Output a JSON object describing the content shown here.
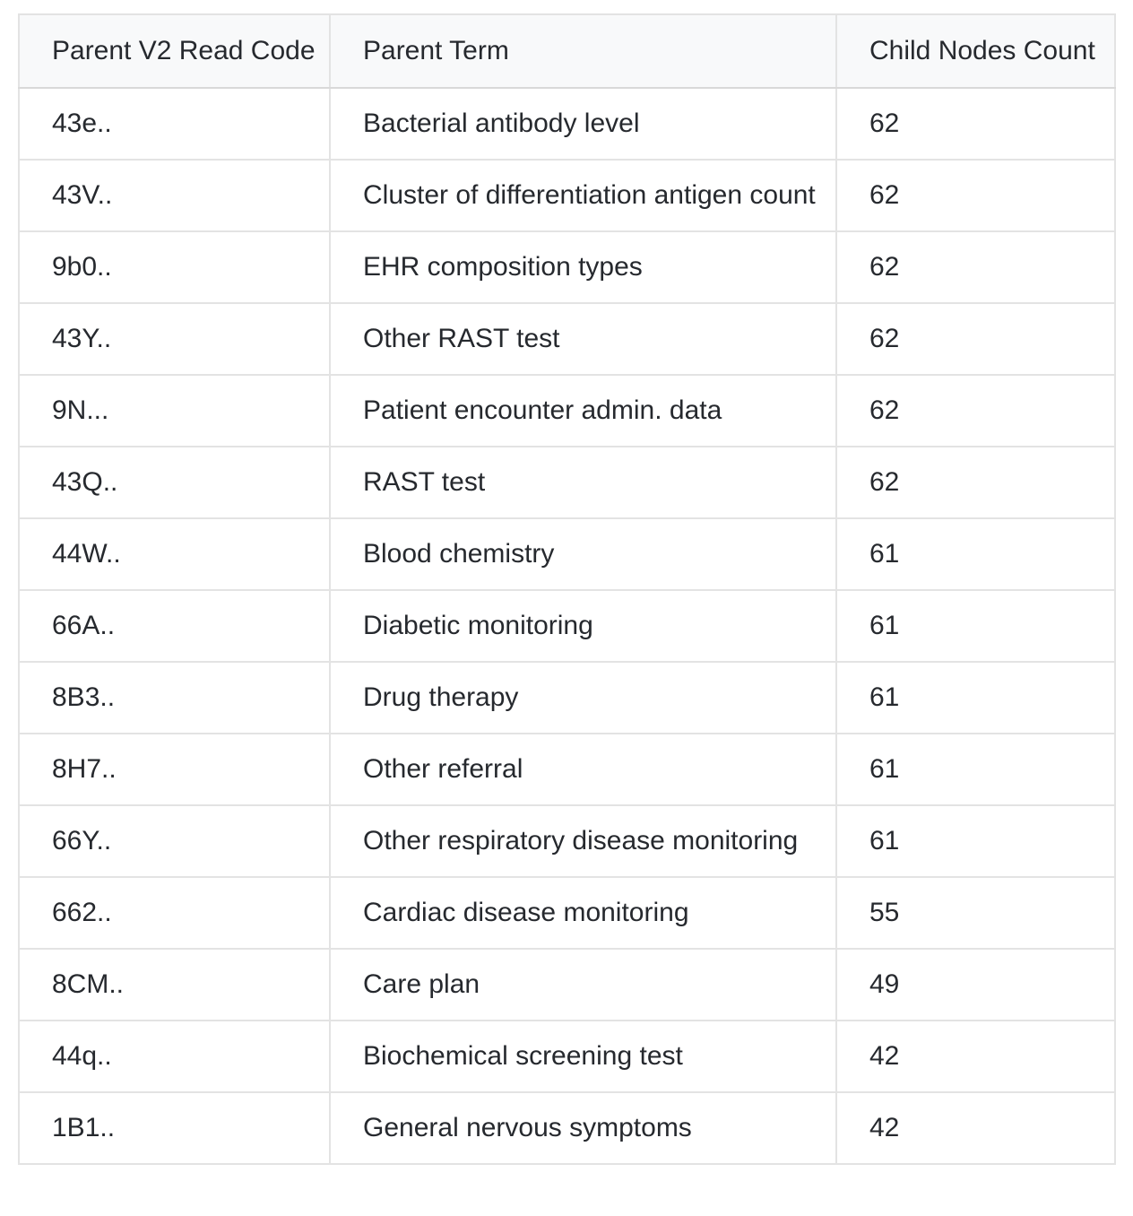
{
  "table": {
    "columns": [
      {
        "label": "Parent V2 Read Code"
      },
      {
        "label": "Parent Term"
      },
      {
        "label": "Child Nodes Count"
      }
    ],
    "rows": [
      {
        "code": "43e..",
        "term": "Bacterial antibody level",
        "count": "62"
      },
      {
        "code": "43V..",
        "term": "Cluster of differentiation antigen count",
        "count": "62"
      },
      {
        "code": "9b0..",
        "term": "EHR composition types",
        "count": "62"
      },
      {
        "code": "43Y..",
        "term": "Other RAST test",
        "count": "62"
      },
      {
        "code": "9N...",
        "term": "Patient encounter admin. data",
        "count": "62"
      },
      {
        "code": "43Q..",
        "term": "RAST test",
        "count": "62"
      },
      {
        "code": "44W..",
        "term": "Blood chemistry",
        "count": "61"
      },
      {
        "code": "66A..",
        "term": "Diabetic monitoring",
        "count": "61"
      },
      {
        "code": "8B3..",
        "term": "Drug therapy",
        "count": "61"
      },
      {
        "code": "8H7..",
        "term": "Other referral",
        "count": "61"
      },
      {
        "code": "66Y..",
        "term": "Other respiratory disease monitoring",
        "count": "61"
      },
      {
        "code": "662..",
        "term": "Cardiac disease monitoring",
        "count": "55"
      },
      {
        "code": "8CM..",
        "term": "Care plan",
        "count": "49"
      },
      {
        "code": "44q..",
        "term": "Biochemical screening test",
        "count": "42"
      },
      {
        "code": "1B1..",
        "term": "General nervous symptoms",
        "count": "42"
      }
    ]
  },
  "chart_data": {
    "type": "table",
    "columns": [
      "Parent V2 Read Code",
      "Parent Term",
      "Child Nodes Count"
    ],
    "rows": [
      [
        "43e..",
        "Bacterial antibody level",
        62
      ],
      [
        "43V..",
        "Cluster of differentiation antigen count",
        62
      ],
      [
        "9b0..",
        "EHR composition types",
        62
      ],
      [
        "43Y..",
        "Other RAST test",
        62
      ],
      [
        "9N...",
        "Patient encounter admin. data",
        62
      ],
      [
        "43Q..",
        "RAST test",
        62
      ],
      [
        "44W..",
        "Blood chemistry",
        61
      ],
      [
        "66A..",
        "Diabetic monitoring",
        61
      ],
      [
        "8B3..",
        "Drug therapy",
        61
      ],
      [
        "8H7..",
        "Other referral",
        61
      ],
      [
        "66Y..",
        "Other respiratory disease monitoring",
        61
      ],
      [
        "662..",
        "Cardiac disease monitoring",
        55
      ],
      [
        "8CM..",
        "Care plan",
        49
      ],
      [
        "44q..",
        "Biochemical screening test",
        42
      ],
      [
        "1B1..",
        "General nervous symptoms",
        42
      ]
    ]
  },
  "colors": {
    "text": "#26292e",
    "border": "#e3e3e3",
    "header-border": "#d9d9d9",
    "header-bg": "#f8f9fa",
    "page-bg": "#ffffff"
  }
}
